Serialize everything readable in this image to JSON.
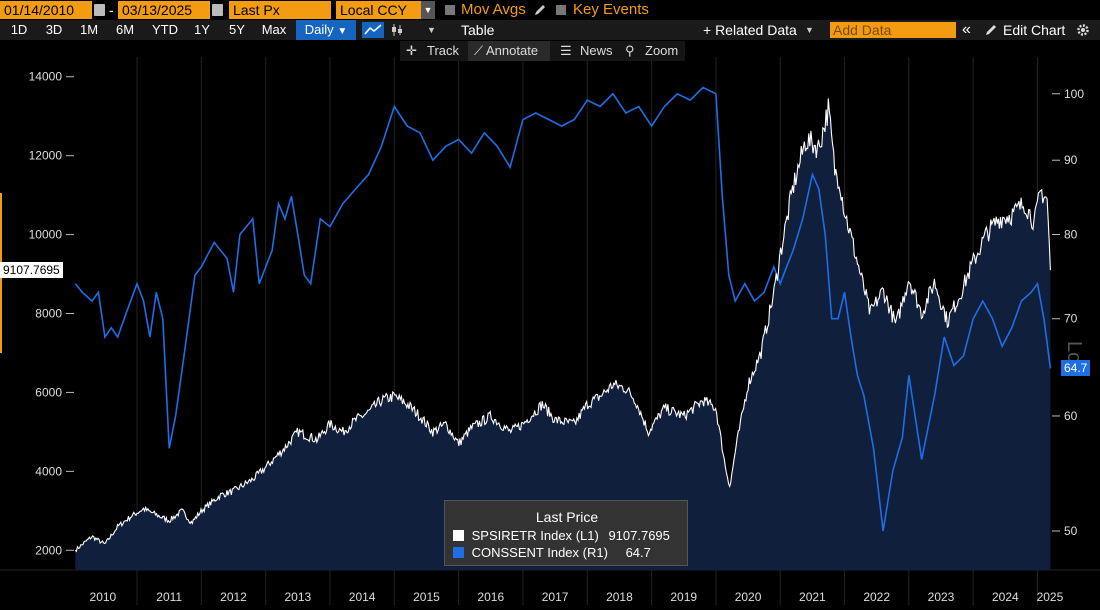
{
  "toolbar": {
    "start_date": "01/14/2010",
    "end_date": "03/13/2025",
    "field": "Last Px",
    "currency": "Local CCY",
    "mov_avgs": "Mov Avgs",
    "key_events": "Key Events"
  },
  "ranges": [
    "1D",
    "3D",
    "1M",
    "6M",
    "YTD",
    "1Y",
    "5Y",
    "Max"
  ],
  "frequency": "Daily",
  "frequency_arrow": "▼",
  "view": {
    "table": "Table"
  },
  "related_data": "+ Related Data",
  "add_data_placeholder": "Add Data",
  "collapse_icon": "«",
  "edit_chart": "Edit Chart",
  "tools": {
    "track": "Track",
    "annotate": "Annotate",
    "news": "News",
    "zoom": "Zoom"
  },
  "colors": {
    "accent": "#f39c12",
    "series1": "#ffffff",
    "series2": "#1e6ee6",
    "area": "#0f1f3c",
    "selected": "#1565c0"
  },
  "chart_data": {
    "type": "line",
    "x_range": [
      "2010-01-14",
      "2025-03-13"
    ],
    "x_ticks": [
      "2010",
      "2011",
      "2012",
      "2013",
      "2014",
      "2015",
      "2016",
      "2017",
      "2018",
      "2019",
      "2020",
      "2021",
      "2022",
      "2023",
      "2024",
      "2025"
    ],
    "y_left": {
      "range": [
        1500,
        14500
      ],
      "ticks": [
        2000,
        4000,
        6000,
        8000,
        10000,
        12000,
        14000
      ],
      "last_label": "9107.7695"
    },
    "y_right": {
      "range": [
        47,
        106
      ],
      "ticks": [
        50,
        60,
        70,
        80,
        90,
        100
      ],
      "scale": "log",
      "scale_label": "Log",
      "last_label": "64.7"
    },
    "grid": "vertical",
    "legend": {
      "title": "Last Price",
      "placement": "bottom-center",
      "entries": [
        {
          "name": "SPSIRETR Index",
          "axis": "(L1)",
          "value": "9107.7695"
        },
        {
          "name": "CONSSENT Index",
          "axis": "(R1)",
          "value": "64.7"
        }
      ]
    },
    "series": [
      {
        "name": "SPSIRETR Index",
        "axis": "left",
        "style": "area",
        "x": [
          2010.04,
          2010.3,
          2010.5,
          2010.7,
          2010.9,
          2011.1,
          2011.3,
          2011.5,
          2011.7,
          2011.85,
          2012.0,
          2012.3,
          2012.5,
          2012.8,
          2013.0,
          2013.3,
          2013.5,
          2013.8,
          2014.0,
          2014.2,
          2014.4,
          2014.6,
          2014.8,
          2015.0,
          2015.2,
          2015.4,
          2015.6,
          2015.8,
          2016.0,
          2016.2,
          2016.5,
          2016.8,
          2017.0,
          2017.3,
          2017.5,
          2017.8,
          2018.0,
          2018.2,
          2018.4,
          2018.6,
          2018.75,
          2018.95,
          2019.2,
          2019.5,
          2019.8,
          2020.0,
          2020.15,
          2020.22,
          2020.3,
          2020.5,
          2020.7,
          2020.9,
          2021.0,
          2021.2,
          2021.4,
          2021.6,
          2021.75,
          2021.85,
          2021.92,
          2022.0,
          2022.2,
          2022.4,
          2022.6,
          2022.8,
          2023.0,
          2023.2,
          2023.4,
          2023.6,
          2023.8,
          2024.0,
          2024.2,
          2024.4,
          2024.6,
          2024.8,
          2024.95,
          2025.05,
          2025.15,
          2025.2
        ],
        "y": [
          2000,
          2350,
          2150,
          2600,
          2850,
          3050,
          2900,
          2750,
          3000,
          2700,
          3000,
          3400,
          3500,
          3800,
          4100,
          4600,
          5000,
          4800,
          5200,
          5000,
          5300,
          5500,
          5800,
          5900,
          5700,
          5400,
          5000,
          5200,
          4700,
          5100,
          5400,
          5000,
          5200,
          5700,
          5300,
          5200,
          5700,
          5900,
          6200,
          6100,
          5800,
          5000,
          5600,
          5400,
          5800,
          5600,
          4100,
          3600,
          4500,
          6200,
          7000,
          8500,
          9500,
          11200,
          12400,
          12200,
          13200,
          11600,
          11400,
          10600,
          9300,
          8000,
          8600,
          7700,
          8900,
          8000,
          8800,
          7800,
          8500,
          9300,
          10000,
          10400,
          10500,
          10800,
          10300,
          11100,
          10900,
          9100
        ]
      },
      {
        "name": "CONSSENT Index",
        "axis": "right",
        "style": "line",
        "x": [
          2010.04,
          2010.15,
          2010.3,
          2010.4,
          2010.5,
          2010.6,
          2010.7,
          2010.85,
          2011.0,
          2011.1,
          2011.2,
          2011.3,
          2011.4,
          2011.5,
          2011.6,
          2011.75,
          2011.9,
          2012.0,
          2012.2,
          2012.4,
          2012.5,
          2012.6,
          2012.8,
          2012.9,
          2013.0,
          2013.1,
          2013.2,
          2013.3,
          2013.4,
          2013.5,
          2013.6,
          2013.7,
          2013.85,
          2014.0,
          2014.2,
          2014.4,
          2014.6,
          2014.8,
          2015.0,
          2015.2,
          2015.4,
          2015.6,
          2015.8,
          2016.0,
          2016.2,
          2016.4,
          2016.6,
          2016.8,
          2017.0,
          2017.2,
          2017.4,
          2017.6,
          2017.8,
          2018.0,
          2018.2,
          2018.4,
          2018.6,
          2018.8,
          2019.0,
          2019.2,
          2019.4,
          2019.6,
          2019.8,
          2020.0,
          2020.1,
          2020.2,
          2020.3,
          2020.45,
          2020.6,
          2020.75,
          2020.9,
          2021.0,
          2021.1,
          2021.2,
          2021.35,
          2021.5,
          2021.6,
          2021.7,
          2021.8,
          2021.9,
          2022.0,
          2022.1,
          2022.2,
          2022.3,
          2022.45,
          2022.6,
          2022.75,
          2022.9,
          2023.0,
          2023.2,
          2023.4,
          2023.55,
          2023.7,
          2023.85,
          2024.0,
          2024.15,
          2024.3,
          2024.45,
          2024.6,
          2024.75,
          2024.9,
          2025.0,
          2025.1,
          2025.2
        ],
        "y": [
          74,
          73,
          72,
          73,
          68,
          69,
          68,
          71,
          74,
          72,
          68,
          73,
          70,
          57,
          60,
          67,
          75,
          76,
          79,
          77,
          73,
          80,
          82,
          74,
          76,
          78,
          84,
          82,
          85,
          80,
          75,
          74,
          82,
          81,
          84,
          86,
          88,
          92,
          98,
          95,
          94,
          90,
          92,
          93,
          91,
          94,
          92,
          89,
          96,
          97,
          96,
          95,
          96,
          99,
          98,
          100,
          97,
          98,
          95,
          98,
          100,
          99,
          101,
          100,
          85,
          75,
          72,
          74,
          72,
          73,
          76,
          74,
          76,
          78,
          82,
          88,
          86,
          80,
          70,
          70,
          73,
          68,
          64,
          62,
          57,
          50,
          55,
          58,
          64,
          56,
          62,
          68,
          65,
          66,
          70,
          72,
          70,
          67,
          69,
          72,
          73,
          74,
          70,
          64.7
        ]
      }
    ]
  }
}
